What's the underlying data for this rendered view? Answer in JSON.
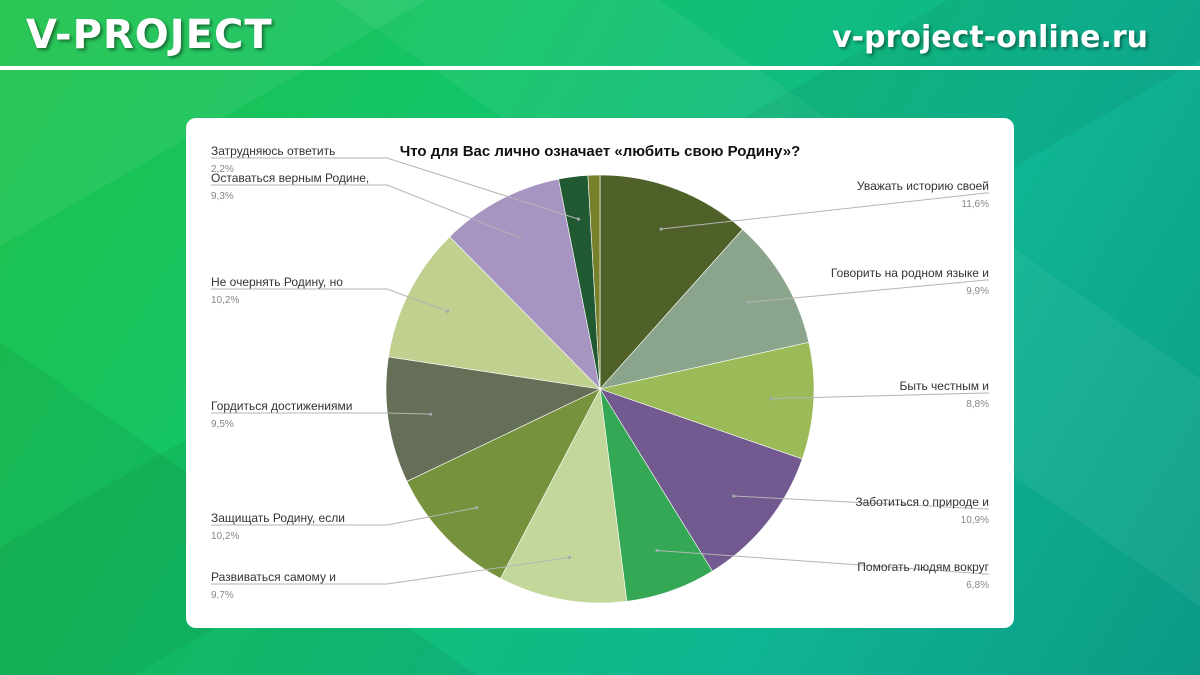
{
  "header": {
    "brand": "V-PROJECT",
    "site": "v-project-online.ru"
  },
  "chart_data": {
    "type": "pie",
    "title": "Что для Вас лично означает «любить свою Родину»?",
    "slices": [
      {
        "label": "Уважать историю своей",
        "value": 11.6,
        "value_label": "11,6%",
        "color": "#4f6128"
      },
      {
        "label": "Говорить на родном языке и",
        "value": 9.9,
        "value_label": "9,9%",
        "color": "#8aa58b"
      },
      {
        "label": "Быть честным и",
        "value": 8.8,
        "value_label": "8,8%",
        "color": "#9bbb59"
      },
      {
        "label": "Заботиться о природе и",
        "value": 10.9,
        "value_label": "10,9%",
        "color": "#725990"
      },
      {
        "label": "Помогать людям вокруг",
        "value": 6.8,
        "value_label": "6,8%",
        "color": "#35a855"
      },
      {
        "label": "Развиваться самому и",
        "value": 9.7,
        "value_label": "9,7%",
        "color": "#c4d79b"
      },
      {
        "label": "Защищать Родину, если",
        "value": 10.2,
        "value_label": "10,2%",
        "color": "#76923c"
      },
      {
        "label": "Гордиться достижениями",
        "value": 9.5,
        "value_label": "9,5%",
        "color": "#656e56"
      },
      {
        "label": "Не очернять Родину, но",
        "value": 10.2,
        "value_label": "10,2%",
        "color": "#c0d18f"
      },
      {
        "label": "Оставаться верным Родине,",
        "value": 9.3,
        "value_label": "9,3%",
        "color": "#a695c0"
      },
      {
        "label": "Затрудняюсь ответить",
        "value": 2.2,
        "value_label": "2,2%",
        "color": "#215a32"
      },
      {
        "label": "",
        "value": 0.9,
        "value_label": "",
        "color": "#77802b"
      }
    ]
  }
}
